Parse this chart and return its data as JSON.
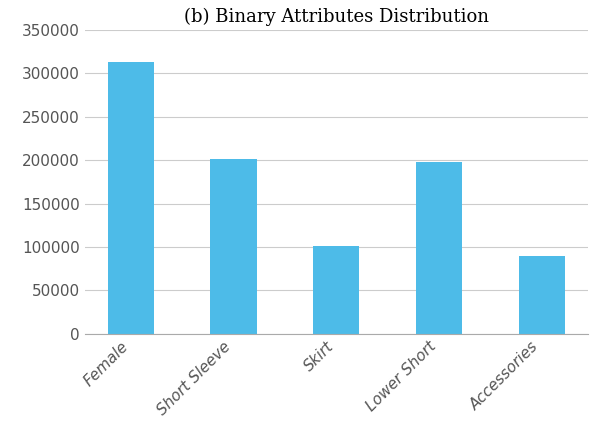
{
  "title": "(b) Binary Attributes Distribution",
  "categories": [
    "Female",
    "Short Sleeve",
    "Skirt",
    "Lower Short",
    "Accessories"
  ],
  "values": [
    313000,
    201000,
    101000,
    198000,
    90000
  ],
  "bar_color": "#4DBBE8",
  "ylim": [
    0,
    350000
  ],
  "yticks": [
    0,
    50000,
    100000,
    150000,
    200000,
    250000,
    300000,
    350000
  ],
  "title_fontsize": 13,
  "tick_fontsize": 11,
  "xlabel_rotation": 45,
  "grid_color": "#cccccc",
  "grid_linewidth": 0.8,
  "background_color": "#ffffff",
  "figsize": [
    6.06,
    4.28
  ],
  "dpi": 100
}
